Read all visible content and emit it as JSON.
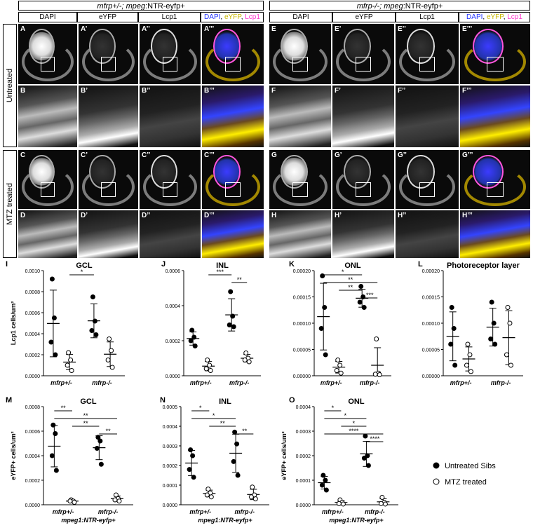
{
  "headers": {
    "left": {
      "pre": "mfrp+/-; mpeg",
      "post": ":NTR-eyfp+"
    },
    "right": {
      "pre": "mfrp-/-; mpeg",
      "post": ":NTR-eyfp+"
    }
  },
  "columns": {
    "dapi": "DAPI",
    "eyfp": "eYFP",
    "lcp1": "Lcp1",
    "merge": {
      "a": "DAPI",
      "b": "eYFP",
      "c": "Lcp1",
      "sep": ", "
    }
  },
  "rows": {
    "untreated": "Untreated",
    "mtz": "MTZ treated"
  },
  "panels": [
    "A",
    "A’",
    "A’’",
    "A’’’",
    "E",
    "E’",
    "E’’",
    "E’’’",
    "B",
    "B’",
    "B’’",
    "B’’’",
    "F",
    "F’",
    "F’’",
    "F’’’",
    "C",
    "C’",
    "C’’",
    "C’’’",
    "G",
    "G’",
    "G’’",
    "G’’’",
    "D",
    "D’",
    "D’’",
    "D’’’",
    "H",
    "H’",
    "H’’",
    "H’’’"
  ],
  "colors": {
    "dapi": "#2233ff",
    "eyfp": "#ffee00",
    "lcp1": "#ff33cc"
  },
  "legend": {
    "filled": "Untreated Sibs",
    "open": "MTZ treated"
  },
  "chart_data": [
    {
      "id": "I",
      "title": "GCL",
      "type": "scatter",
      "ylabel": "Lcp1 cells/um²",
      "ylim": [
        0,
        0.001
      ],
      "yticks": [
        "0.0000",
        "0.0002",
        "0.0004",
        "0.0006",
        "0.0008",
        "0.0010"
      ],
      "categories": [
        "mfrp+/-",
        "mfrp-/-"
      ],
      "series": [
        {
          "name": "Untreated Sibs",
          "values": [
            [
              0.00092,
              0.00055,
              0.00032,
              0.0002
            ],
            [
              0.00075,
              0.00052,
              0.00043,
              0.00039
            ]
          ]
        },
        {
          "name": "MTZ treated",
          "values": [
            [
              0.00022,
              0.00015,
              0.0001,
              5e-05
            ],
            [
              0.00035,
              0.00024,
              0.00015,
              8e-05
            ]
          ]
        }
      ],
      "sig": [
        {
          "a": 1,
          "b": 2,
          "label": "*"
        }
      ]
    },
    {
      "id": "J",
      "title": "INL",
      "type": "scatter",
      "ylim": [
        0,
        0.0006
      ],
      "yticks": [
        "0.0000",
        "0.0002",
        "0.0004",
        "0.0006"
      ],
      "categories": [
        "mfrp+/-",
        "mfrp-/-"
      ],
      "series": [
        {
          "name": "Untreated Sibs",
          "values": [
            [
              0.00026,
              0.00022,
              0.0002,
              0.00017
            ],
            [
              0.00048,
              0.00034,
              0.00029,
              0.00028
            ]
          ]
        },
        {
          "name": "MTZ treated",
          "values": [
            [
              9e-05,
              6e-05,
              4e-05,
              3e-05
            ],
            [
              0.00013,
              0.0001,
              9e-05,
              8e-05
            ]
          ]
        }
      ],
      "sig": [
        {
          "a": 1,
          "b": 2,
          "label": "***"
        },
        {
          "a": 2,
          "b": 3,
          "label": "**"
        }
      ]
    },
    {
      "id": "K",
      "title": "ONL",
      "type": "scatter",
      "ylim": [
        0,
        0.0002
      ],
      "yticks": [
        "0.00000",
        "0.00005",
        "0.00010",
        "0.00015",
        "0.00020"
      ],
      "categories": [
        "mfrp+/-",
        "mfrp-/-"
      ],
      "series": [
        {
          "name": "Untreated Sibs",
          "values": [
            [
              0.00019,
              0.00013,
              9e-05,
              4e-05
            ],
            [
              0.00017,
              0.00015,
              0.00014,
              0.00013
            ]
          ]
        },
        {
          "name": "MTZ treated",
          "values": [
            [
              3e-05,
              2e-05,
              1e-05,
              5e-06
            ],
            [
              7e-05,
              5e-06,
              3e-06,
              2e-06
            ]
          ]
        }
      ],
      "sig": [
        {
          "a": 0,
          "b": 2,
          "label": "*"
        },
        {
          "a": 0,
          "b": 3,
          "label": "**"
        },
        {
          "a": 1,
          "b": 2,
          "label": "**"
        },
        {
          "a": 2,
          "b": 3,
          "label": "***"
        }
      ]
    },
    {
      "id": "L",
      "title": "Photoreceptor layer",
      "type": "scatter",
      "ylim": [
        0,
        0.0002
      ],
      "yticks": [
        "0.00000",
        "0.00005",
        "0.00010",
        "0.00015",
        "0.00020"
      ],
      "categories": [
        "mfrp+/-",
        "mfrp-/-"
      ],
      "series": [
        {
          "name": "Untreated Sibs",
          "values": [
            [
              0.00013,
              9e-05,
              6e-05,
              2e-05
            ],
            [
              0.00014,
              0.0001,
              7e-05,
              6e-05
            ]
          ]
        },
        {
          "name": "MTZ treated",
          "values": [
            [
              6e-05,
              4e-05,
              2e-05,
              8e-06
            ],
            [
              0.00013,
              0.0001,
              4e-05,
              2e-05
            ]
          ]
        }
      ],
      "sig": []
    },
    {
      "id": "M",
      "title": "GCL",
      "type": "scatter",
      "ylabel": "eYFP+ cells/um²",
      "ylim": [
        0,
        0.0008
      ],
      "yticks": [
        "0.0000",
        "0.0002",
        "0.0004",
        "0.0006",
        "0.0008"
      ],
      "categories": [
        "mfrp+/-",
        "mfrp-/-"
      ],
      "xsub": "mpeg1:NTR-eyfp+",
      "series": [
        {
          "name": "Untreated Sibs",
          "values": [
            [
              0.00065,
              0.00058,
              0.0004,
              0.00028
            ],
            [
              0.00055,
              0.00052,
              0.00046,
              0.00033
            ]
          ]
        },
        {
          "name": "MTZ treated",
          "values": [
            [
              4e-05,
              3e-05,
              3e-05,
              2e-05
            ],
            [
              8e-05,
              5e-05,
              4e-05,
              3e-05
            ]
          ]
        }
      ],
      "sig": [
        {
          "a": 0,
          "b": 1,
          "label": "**"
        },
        {
          "a": 0,
          "b": 3,
          "label": "**"
        },
        {
          "a": 1,
          "b": 2,
          "label": "**"
        },
        {
          "a": 2,
          "b": 3,
          "label": "**"
        }
      ]
    },
    {
      "id": "N",
      "title": "INL",
      "type": "scatter",
      "ylim": [
        0,
        0.0005
      ],
      "yticks": [
        "0.0000",
        "0.0001",
        "0.0002",
        "0.0003",
        "0.0004",
        "0.0005"
      ],
      "categories": [
        "mfrp+/-",
        "mfrp-/-"
      ],
      "xsub": "mpeg1:NTR-eyfp+",
      "series": [
        {
          "name": "Untreated Sibs",
          "values": [
            [
              0.00028,
              0.00025,
              0.00018,
              0.00014
            ],
            [
              0.00037,
              0.00031,
              0.00022,
              0.00015
            ]
          ]
        },
        {
          "name": "MTZ treated",
          "values": [
            [
              8e-05,
              6e-05,
              5e-05,
              4e-05
            ],
            [
              9e-05,
              5e-05,
              4e-05,
              3e-05
            ]
          ]
        }
      ],
      "sig": [
        {
          "a": 0,
          "b": 1,
          "label": "*"
        },
        {
          "a": 0,
          "b": 2,
          "label": "*"
        },
        {
          "a": 1,
          "b": 2,
          "label": "**"
        },
        {
          "a": 2,
          "b": 3,
          "label": "**"
        }
      ]
    },
    {
      "id": "O",
      "title": "ONL",
      "type": "scatter",
      "ylabel": "eYFP+ cells/um²",
      "ylim": [
        0,
        0.0004
      ],
      "yticks": [
        "0.0000",
        "0.0001",
        "0.0002",
        "0.0003",
        "0.0004"
      ],
      "categories": [
        "mfrp+/-",
        "mfrp-/-"
      ],
      "xsub": "mpeg1:NTR-eyfp+",
      "series": [
        {
          "name": "Untreated Sibs",
          "values": [
            [
              0.00012,
              0.0001,
              8e-05,
              6e-05
            ],
            [
              0.00028,
              0.0002,
              0.00019,
              0.00016
            ]
          ]
        },
        {
          "name": "MTZ treated",
          "values": [
            [
              2e-05,
              1e-05,
              5e-06,
              3e-06
            ],
            [
              3e-05,
              1e-05,
              5e-06,
              3e-06
            ]
          ]
        }
      ],
      "sig": [
        {
          "a": 0,
          "b": 1,
          "label": "*"
        },
        {
          "a": 0,
          "b": 2,
          "label": "*"
        },
        {
          "a": 1,
          "b": 2,
          "label": "*"
        },
        {
          "a": 0,
          "b": 3,
          "label": "****"
        },
        {
          "a": 2,
          "b": 3,
          "label": "****"
        }
      ]
    }
  ]
}
